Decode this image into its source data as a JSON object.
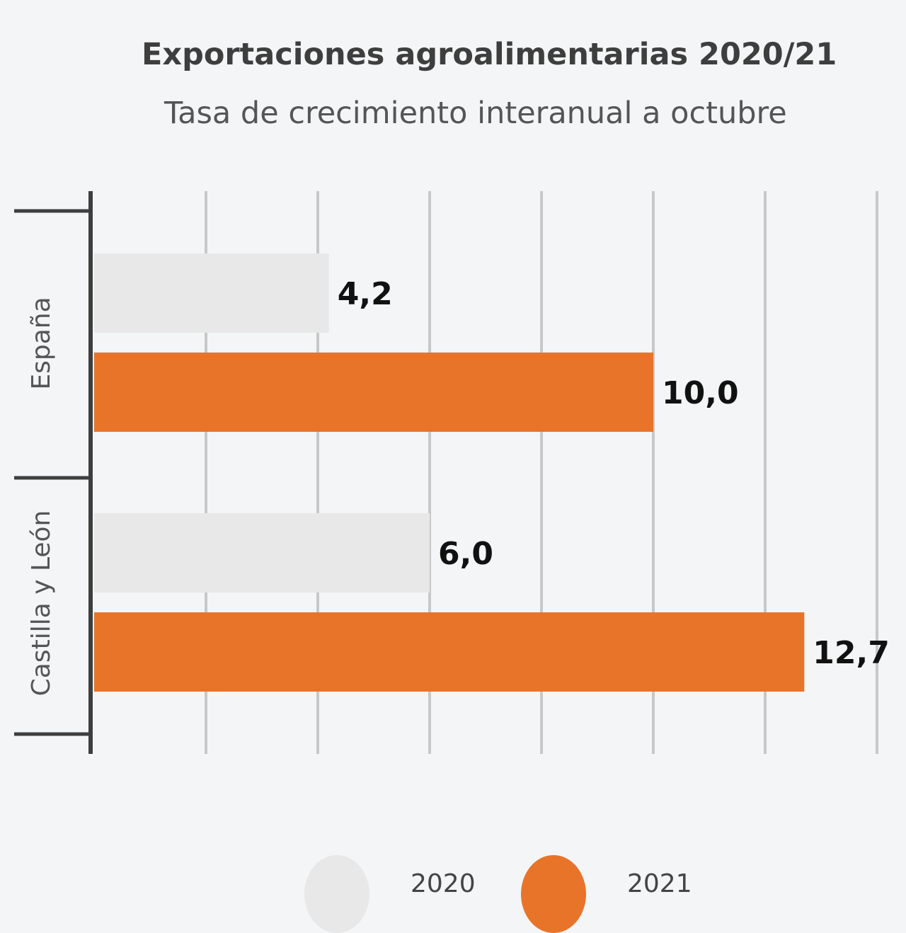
{
  "chart_data": {
    "type": "bar",
    "orientation": "horizontal",
    "title": "Exportaciones agroalimentarias 2020/21",
    "subtitle": "Tasa de crecimiento interanual a octubre",
    "categories": [
      "España",
      "Castilla y León"
    ],
    "series": [
      {
        "name": "2020",
        "values": [
          4.2,
          6.0
        ],
        "labels": [
          "4,2",
          "6,0"
        ],
        "color": "#e8e8e8"
      },
      {
        "name": "2021",
        "values": [
          10.0,
          12.7
        ],
        "labels": [
          "10,0",
          "12,7"
        ],
        "color": "#e8742a"
      }
    ],
    "xlim": [
      0,
      14
    ],
    "grid": true,
    "grid_step": 2,
    "legend_placement": "bottom"
  }
}
